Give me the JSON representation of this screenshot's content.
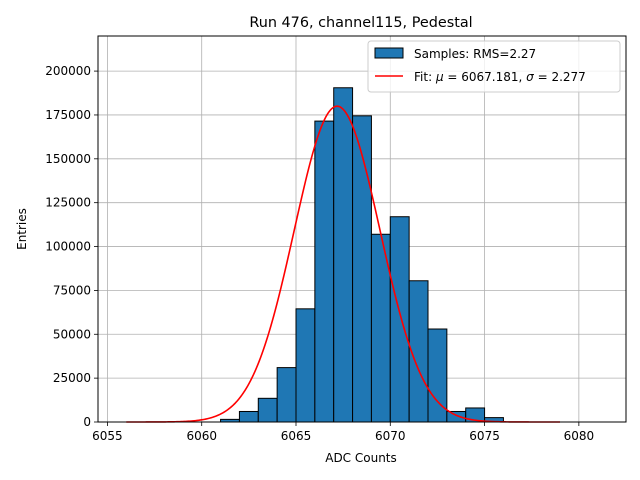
{
  "chart_data": {
    "type": "bar",
    "title": "Run 476, channel115, Pedestal",
    "xlabel": "ADC Counts",
    "ylabel": "Entries",
    "xlim": [
      6054.5,
      6082.5
    ],
    "ylim": [
      0,
      220000
    ],
    "x_ticks": [
      {
        "value": 6055,
        "label": "6055"
      },
      {
        "value": 6060,
        "label": "6060"
      },
      {
        "value": 6065,
        "label": "6065"
      },
      {
        "value": 6070,
        "label": "6070"
      },
      {
        "value": 6075,
        "label": "6075"
      },
      {
        "value": 6080,
        "label": "6080"
      }
    ],
    "y_ticks": [
      {
        "value": 0,
        "label": "0"
      },
      {
        "value": 25000,
        "label": "25000"
      },
      {
        "value": 50000,
        "label": "50000"
      },
      {
        "value": 75000,
        "label": "75000"
      },
      {
        "value": 100000,
        "label": "100000"
      },
      {
        "value": 125000,
        "label": "125000"
      },
      {
        "value": 150000,
        "label": "150000"
      },
      {
        "value": 175000,
        "label": "175000"
      },
      {
        "value": 200000,
        "label": "200000"
      }
    ],
    "grid": true,
    "histogram": {
      "name": "Samples: RMS=2.27",
      "color": "#1f77b4",
      "edge_color": "#000000",
      "bins": [
        {
          "x0": 6061,
          "x1": 6062,
          "value": 1500
        },
        {
          "x0": 6062,
          "x1": 6063,
          "value": 6000
        },
        {
          "x0": 6063,
          "x1": 6064,
          "value": 13500
        },
        {
          "x0": 6064,
          "x1": 6065,
          "value": 31000
        },
        {
          "x0": 6065,
          "x1": 6066,
          "value": 64500
        },
        {
          "x0": 6066,
          "x1": 6067,
          "value": 171500
        },
        {
          "x0": 6067,
          "x1": 6068,
          "value": 190500
        },
        {
          "x0": 6068,
          "x1": 6069,
          "value": 174500
        },
        {
          "x0": 6069,
          "x1": 6070,
          "value": 107000
        },
        {
          "x0": 6070,
          "x1": 6071,
          "value": 117000
        },
        {
          "x0": 6071,
          "x1": 6072,
          "value": 80500
        },
        {
          "x0": 6072,
          "x1": 6073,
          "value": 53000
        },
        {
          "x0": 6073,
          "x1": 6074,
          "value": 6000
        },
        {
          "x0": 6074,
          "x1": 6075,
          "value": 8000
        },
        {
          "x0": 6075,
          "x1": 6076,
          "value": 2500
        }
      ]
    },
    "fit": {
      "name": "Fit: μ = 6067.181, σ = 2.277",
      "color": "#ff0000",
      "mu": 6067.181,
      "sigma": 2.277,
      "amplitude": 180000,
      "x_range": [
        6056,
        6079
      ]
    },
    "legend": {
      "location": "upper right",
      "entries": [
        {
          "label": "Samples: RMS=2.27",
          "kind": "patch"
        },
        {
          "label": "Fit: μ = 6067.181, σ = 2.277",
          "kind": "line"
        }
      ]
    }
  }
}
